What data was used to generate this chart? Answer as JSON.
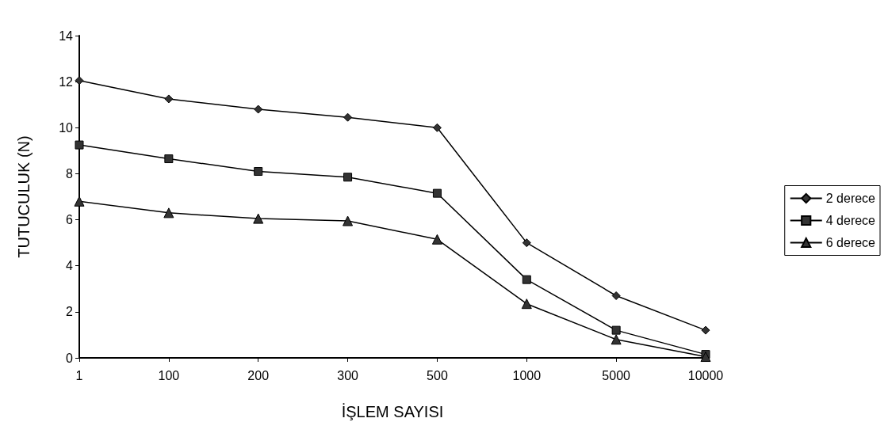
{
  "chart_data": {
    "type": "line",
    "xlabel": "İŞLEM SAYISI",
    "ylabel": "TUTUCULUK (N)",
    "categories": [
      "1",
      "100",
      "200",
      "300",
      "500",
      "1000",
      "5000",
      "10000"
    ],
    "series": [
      {
        "name": "2 derece",
        "color": "#333333",
        "marker": "diamond",
        "values": [
          12.05,
          11.25,
          10.8,
          10.45,
          10.0,
          5.0,
          2.7,
          1.2
        ]
      },
      {
        "name": "4 derece",
        "color": "#333333",
        "marker": "square",
        "values": [
          9.25,
          8.65,
          8.1,
          7.85,
          7.15,
          3.4,
          1.2,
          0.15
        ]
      },
      {
        "name": "6 derece",
        "color": "#333333",
        "marker": "triangle",
        "values": [
          6.8,
          6.3,
          6.05,
          5.95,
          5.15,
          2.35,
          0.8,
          0.05
        ]
      }
    ],
    "ylim": [
      0,
      14
    ],
    "yticks": [
      0,
      2,
      4,
      6,
      8,
      10,
      12,
      14
    ],
    "grid": false,
    "legend": "right",
    "line_style": "solid"
  }
}
